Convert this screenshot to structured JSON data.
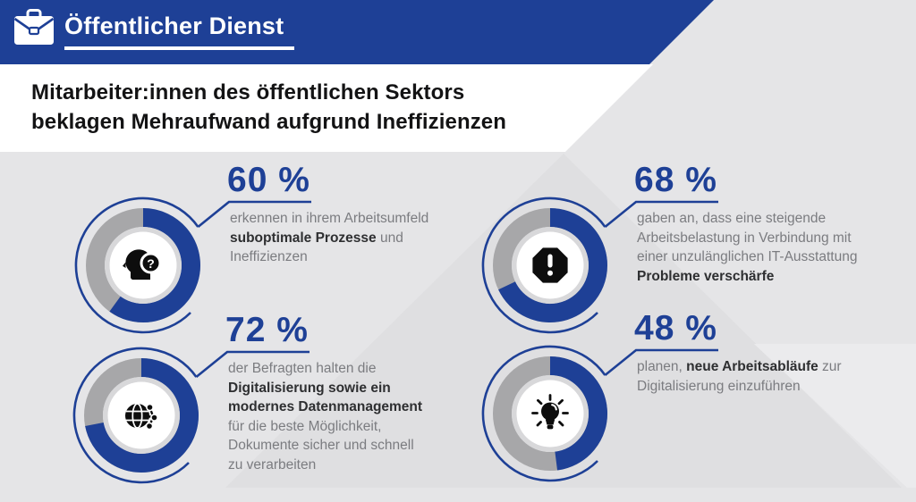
{
  "header": {
    "title": "Öffentlicher Dienst",
    "icon": "briefcase-icon"
  },
  "headline": {
    "line1": "Mitarbeiter:innen des öffentlichen Sektors",
    "line2": "beklagen Mehraufwand aufgrund Ineffizienzen"
  },
  "colors": {
    "accent_blue": "#1e4096",
    "donut_remainder_gray": "#a7a7a9",
    "background": "#e5e5e7",
    "background_facet_dark": "#dfdfe1",
    "background_facet_light": "#ebebed",
    "icon_black": "#0d0d0d",
    "text_muted": "#7b7c80",
    "text_strong": "#2e2f31"
  },
  "chart_data": {
    "type": "pie",
    "subtype": "donut-multiples",
    "units": "%",
    "start_angle": "12-o'clock",
    "direction": "clockwise",
    "series": [
      {
        "value": 60,
        "label": "60 %",
        "icon": "head-question-icon",
        "description_lines": [
          [
            {
              "t": "erkennen in ihrem Arbeitsumfeld",
              "b": false
            }
          ],
          [
            {
              "t": "suboptimale Prozesse",
              "b": true
            },
            {
              "t": " und",
              "b": false
            }
          ],
          [
            {
              "t": "Ineffizienzen",
              "b": false
            }
          ]
        ]
      },
      {
        "value": 68,
        "label": "68 %",
        "icon": "alert-octagon-icon",
        "description_lines": [
          [
            {
              "t": "gaben an, dass eine steigende",
              "b": false
            }
          ],
          [
            {
              "t": "Arbeitsbelastung in Verbindung mit",
              "b": false
            }
          ],
          [
            {
              "t": "einer unzulänglichen IT-Ausstattung",
              "b": false
            }
          ],
          [
            {
              "t": "Probleme verschärfe",
              "b": true
            }
          ]
        ]
      },
      {
        "value": 72,
        "label": "72 %",
        "icon": "globe-network-icon",
        "description_lines": [
          [
            {
              "t": "der Befragten halten die",
              "b": false
            }
          ],
          [
            {
              "t": "Digitalisierung sowie ein",
              "b": true
            }
          ],
          [
            {
              "t": "modernes Datenmanagement",
              "b": true
            }
          ],
          [
            {
              "t": "für die beste Möglichkeit,",
              "b": false
            }
          ],
          [
            {
              "t": "Dokumente sicher und schnell",
              "b": false
            }
          ],
          [
            {
              "t": "zu verarbeiten",
              "b": false
            }
          ]
        ]
      },
      {
        "value": 48,
        "label": "48 %",
        "icon": "lightbulb-icon",
        "description_lines": [
          [
            {
              "t": "planen, ",
              "b": false
            },
            {
              "t": "neue Arbeitsabläufe",
              "b": true
            },
            {
              "t": " zur",
              "b": false
            }
          ],
          [
            {
              "t": "Digitalisierung einzuführen",
              "b": false
            }
          ]
        ]
      }
    ]
  }
}
